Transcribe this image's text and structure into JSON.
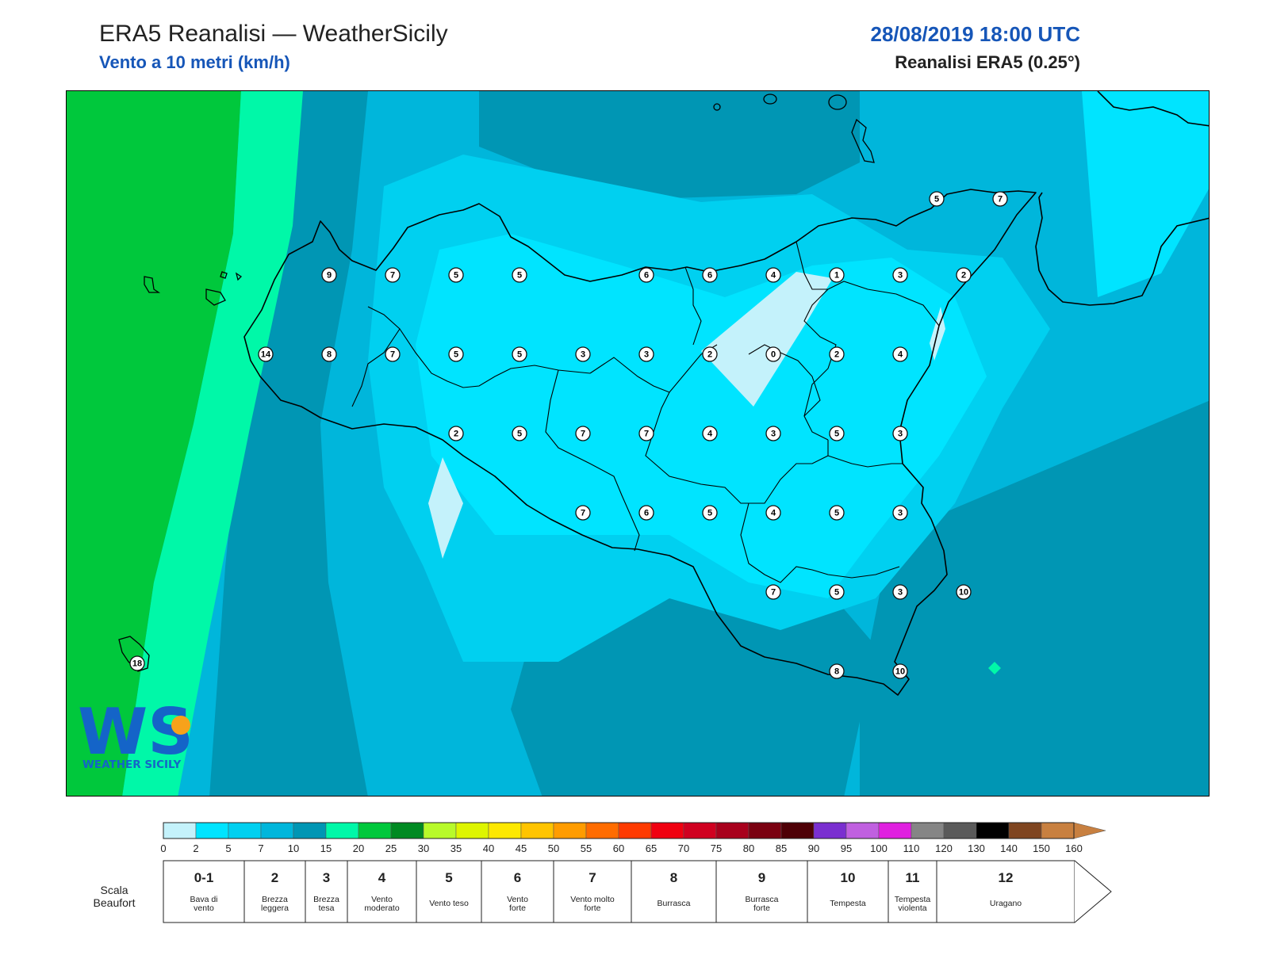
{
  "header": {
    "title": "ERA5 Reanalisi — WeatherSicily",
    "subtitle": "Vento a 10 metri (km/h)",
    "datetime": "28/08/2019 18:00 UTC",
    "source": "Reanalisi ERA5 (0.25°)"
  },
  "logo": {
    "letters": "WS",
    "text": "WEATHER SICILY"
  },
  "stations": [
    {
      "value": "9",
      "col": 4,
      "row": 0
    },
    {
      "value": "7",
      "col": 5,
      "row": 0
    },
    {
      "value": "5",
      "col": 6,
      "row": 0
    },
    {
      "value": "5",
      "col": 7,
      "row": 0
    },
    {
      "value": "6",
      "col": 9,
      "row": 0
    },
    {
      "value": "6",
      "col": 10,
      "row": 0
    },
    {
      "value": "4",
      "col": 11,
      "row": 0
    },
    {
      "value": "1",
      "col": 12,
      "row": 0
    },
    {
      "value": "3",
      "col": 13,
      "row": 0
    },
    {
      "value": "2",
      "col": 14,
      "row": 0
    },
    {
      "value": "14",
      "col": 3,
      "row": 1
    },
    {
      "value": "8",
      "col": 4,
      "row": 1
    },
    {
      "value": "7",
      "col": 5,
      "row": 1
    },
    {
      "value": "5",
      "col": 6,
      "row": 1
    },
    {
      "value": "5",
      "col": 7,
      "row": 1
    },
    {
      "value": "3",
      "col": 8,
      "row": 1
    },
    {
      "value": "3",
      "col": 9,
      "row": 1
    },
    {
      "value": "2",
      "col": 10,
      "row": 1
    },
    {
      "value": "0",
      "col": 11,
      "row": 1
    },
    {
      "value": "2",
      "col": 12,
      "row": 1
    },
    {
      "value": "4",
      "col": 13,
      "row": 1
    },
    {
      "value": "2",
      "col": 6,
      "row": 2
    },
    {
      "value": "5",
      "col": 7,
      "row": 2
    },
    {
      "value": "7",
      "col": 8,
      "row": 2
    },
    {
      "value": "7",
      "col": 9,
      "row": 2
    },
    {
      "value": "4",
      "col": 10,
      "row": 2
    },
    {
      "value": "3",
      "col": 11,
      "row": 2
    },
    {
      "value": "5",
      "col": 12,
      "row": 2
    },
    {
      "value": "3",
      "col": 13,
      "row": 2
    },
    {
      "value": "7",
      "col": 8,
      "row": 3
    },
    {
      "value": "6",
      "col": 9,
      "row": 3
    },
    {
      "value": "5",
      "col": 10,
      "row": 3
    },
    {
      "value": "4",
      "col": 11,
      "row": 3
    },
    {
      "value": "5",
      "col": 12,
      "row": 3
    },
    {
      "value": "3",
      "col": 13,
      "row": 3
    },
    {
      "value": "7",
      "col": 11,
      "row": 4
    },
    {
      "value": "5",
      "col": 12,
      "row": 4
    },
    {
      "value": "3",
      "col": 13,
      "row": 4
    },
    {
      "value": "10",
      "col": 14,
      "row": 4
    },
    {
      "value": "8",
      "col": 12,
      "row": 5
    },
    {
      "value": "10",
      "col": 13,
      "row": 5
    },
    {
      "value": "5",
      "col": 14,
      "row": -1
    },
    {
      "value": "7",
      "col": 15,
      "row": -1
    },
    {
      "value": "18",
      "col": 1,
      "row": 5
    }
  ],
  "colorbar": {
    "colors": [
      "#c4f2fb",
      "#00e4ff",
      "#00d0f0",
      "#00b6db",
      "#0096b4",
      "#00f8a8",
      "#00c83c",
      "#008a22",
      "#b8fa2a",
      "#def500",
      "#fde800",
      "#ffc400",
      "#ff9c00",
      "#ff6c00",
      "#ff3a00",
      "#f00010",
      "#d00020",
      "#a8001c",
      "#7a0010",
      "#4e0006",
      "#7a2fd0",
      "#c060e0",
      "#e020e0",
      "#858585",
      "#5a5a5a",
      "#000000",
      "#7f4520",
      "#c88040"
    ],
    "ticks": [
      "0",
      "2",
      "5",
      "7",
      "10",
      "15",
      "20",
      "25",
      "30",
      "35",
      "40",
      "45",
      "50",
      "55",
      "60",
      "65",
      "70",
      "75",
      "80",
      "85",
      "90",
      "95",
      "100",
      "110",
      "120",
      "130",
      "140",
      "150",
      "160"
    ]
  },
  "beaufort": {
    "label_line1": "Scala",
    "label_line2": "Beaufort",
    "classes": [
      {
        "num": "0-1",
        "desc": [
          "Bava di",
          "vento"
        ]
      },
      {
        "num": "2",
        "desc": [
          "Brezza",
          "leggera"
        ]
      },
      {
        "num": "3",
        "desc": [
          "Brezza",
          "tesa"
        ]
      },
      {
        "num": "4",
        "desc": [
          "Vento",
          "moderato"
        ]
      },
      {
        "num": "5",
        "desc": [
          "Vento teso"
        ]
      },
      {
        "num": "6",
        "desc": [
          "Vento",
          "forte"
        ]
      },
      {
        "num": "7",
        "desc": [
          "Vento molto",
          "forte"
        ]
      },
      {
        "num": "8",
        "desc": [
          "Burrasca"
        ]
      },
      {
        "num": "9",
        "desc": [
          "Burrasca",
          "forte"
        ]
      },
      {
        "num": "10",
        "desc": [
          "Tempesta"
        ]
      },
      {
        "num": "11",
        "desc": [
          "Tempesta",
          "violenta"
        ]
      },
      {
        "num": "12",
        "desc": [
          "Uragano"
        ]
      }
    ]
  }
}
